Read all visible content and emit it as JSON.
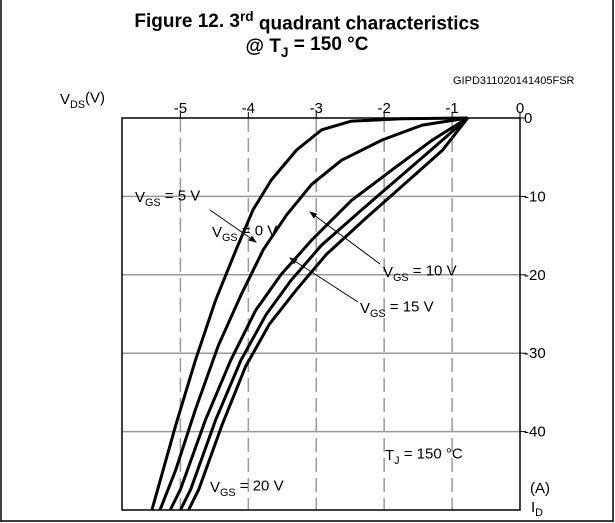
{
  "chart_data": {
    "type": "line",
    "title": [
      "Figure 12. 3",
      "rd",
      " quadrant characteristics"
    ],
    "subtitle": [
      "@ T",
      "J",
      " = 150 °C"
    ],
    "code": "GIPD311020141405FSR",
    "x_label": [
      "V",
      "DS",
      "(V)"
    ],
    "y_label_unit": "(A)",
    "y_label": [
      "I",
      "D"
    ],
    "annotation": [
      "T",
      "J",
      " = 150 °C"
    ],
    "xlim": [
      -5.86,
      0
    ],
    "ylim": [
      -50,
      0
    ],
    "xticks": [
      -5,
      -4,
      -3,
      -2,
      -1,
      0
    ],
    "yticks": [
      0,
      -10,
      -20,
      -30,
      -40
    ],
    "grid": true,
    "series": [
      {
        "name": [
          "V",
          "GS",
          " = 0 V"
        ],
        "color": "#000000",
        "x": [
          -0.77,
          -1.74,
          -2.48,
          -2.92,
          -3.29,
          -3.66,
          -3.93,
          -4.18,
          -4.48,
          -4.78,
          -5.07,
          -5.42
        ],
        "values": [
          0,
          -0.1,
          -0.4,
          -1.5,
          -4.1,
          -7.9,
          -11.7,
          -16.8,
          -23.2,
          -30.9,
          -39.2,
          -50
        ]
      },
      {
        "name": [
          "V",
          "GS",
          " = 5 V"
        ],
        "color": "#000000",
        "x": [
          -0.77,
          -1.44,
          -2.03,
          -2.63,
          -3.07,
          -3.44,
          -3.78,
          -4.11,
          -4.44,
          -4.78,
          -5.07,
          -5.3
        ],
        "values": [
          0,
          -0.9,
          -2.8,
          -5.4,
          -8.5,
          -12.4,
          -16.8,
          -22.6,
          -29,
          -37.2,
          -44.9,
          -50
        ]
      },
      {
        "name": [
          "V",
          "GS",
          " = 10 V"
        ],
        "color": "#000000",
        "x": [
          -0.77,
          -1.29,
          -1.88,
          -2.48,
          -3.07,
          -3.52,
          -3.89,
          -4.26,
          -4.63,
          -5.0,
          -5.15
        ],
        "values": [
          0,
          -2.8,
          -6.6,
          -10.5,
          -15.6,
          -20,
          -24.5,
          -30.9,
          -38.5,
          -47.4,
          -50
        ]
      },
      {
        "name": [
          "V",
          "GS",
          " = 15 V"
        ],
        "color": "#000000",
        "x": [
          -0.77,
          -1.22,
          -1.74,
          -2.33,
          -2.92,
          -3.37,
          -3.74,
          -4.11,
          -4.48,
          -4.85,
          -5.0
        ],
        "values": [
          0,
          -3.4,
          -7.3,
          -11.7,
          -16.2,
          -20.7,
          -25.1,
          -30.9,
          -38.5,
          -47.4,
          -50
        ]
      },
      {
        "name": [
          "V",
          "GS",
          " = 20 V"
        ],
        "color": "#000000",
        "x": [
          -0.77,
          -1.14,
          -1.66,
          -2.26,
          -2.85,
          -3.29,
          -3.69,
          -4.04,
          -4.38,
          -4.73,
          -4.88
        ],
        "values": [
          0,
          -4.1,
          -8.1,
          -12.7,
          -17.4,
          -21.9,
          -26.3,
          -31.7,
          -39,
          -47.4,
          -50
        ]
      }
    ]
  }
}
